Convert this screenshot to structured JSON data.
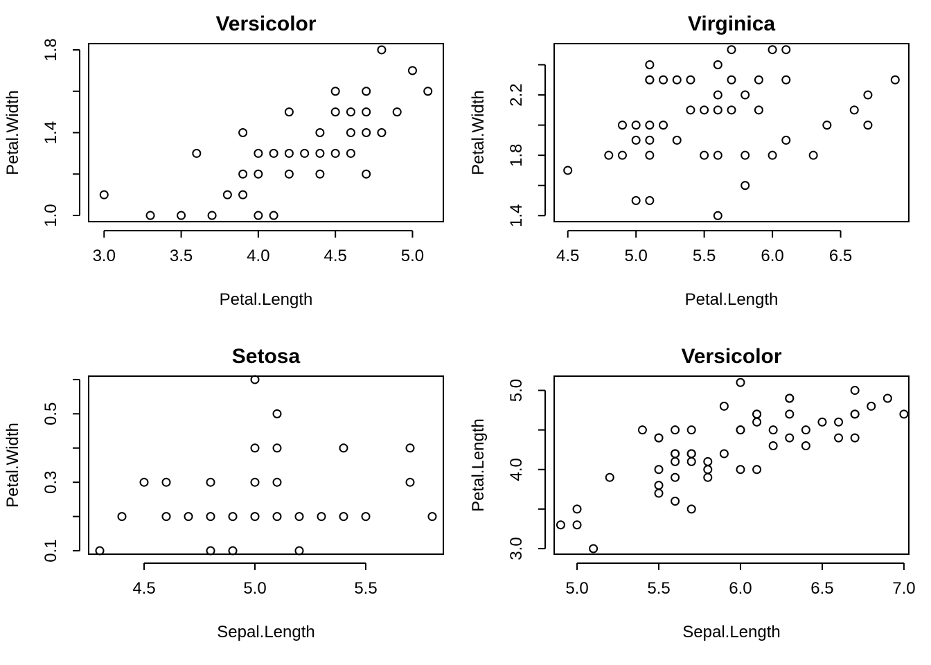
{
  "chart_data": [
    {
      "type": "scatter",
      "title": "Versicolor",
      "xlabel": "Petal.Length",
      "ylabel": "Petal.Width",
      "xlim": [
        2.9,
        5.2
      ],
      "ylim": [
        0.97,
        1.83
      ],
      "xticks": [
        3.0,
        3.5,
        4.0,
        4.5,
        5.0
      ],
      "xtick_labels": [
        "3.0",
        "3.5",
        "4.0",
        "4.5",
        "5.0"
      ],
      "yticks": [
        1.0,
        1.2,
        1.4,
        1.6,
        1.8
      ],
      "ytick_labels": [
        "1.0",
        "",
        "1.4",
        "",
        "1.8"
      ],
      "x": [
        3.0,
        3.3,
        3.5,
        3.6,
        3.7,
        3.8,
        3.9,
        3.9,
        3.9,
        4.0,
        4.0,
        4.0,
        4.1,
        4.1,
        4.2,
        4.2,
        4.2,
        4.3,
        4.4,
        4.4,
        4.4,
        4.5,
        4.5,
        4.5,
        4.6,
        4.6,
        4.6,
        4.7,
        4.7,
        4.7,
        4.7,
        4.8,
        4.8,
        4.9,
        5.0,
        5.1
      ],
      "y": [
        1.1,
        1.0,
        1.0,
        1.3,
        1.0,
        1.1,
        1.1,
        1.2,
        1.4,
        1.0,
        1.2,
        1.3,
        1.0,
        1.3,
        1.2,
        1.3,
        1.5,
        1.3,
        1.2,
        1.3,
        1.4,
        1.3,
        1.5,
        1.6,
        1.3,
        1.4,
        1.5,
        1.2,
        1.4,
        1.5,
        1.6,
        1.4,
        1.8,
        1.5,
        1.7,
        1.6
      ]
    },
    {
      "type": "scatter",
      "title": "Virginica",
      "xlabel": "Petal.Length",
      "ylabel": "Petal.Width",
      "xlim": [
        4.4,
        7.0
      ],
      "ylim": [
        1.36,
        2.54
      ],
      "xticks": [
        4.5,
        5.0,
        5.5,
        6.0,
        6.5
      ],
      "xtick_labels": [
        "4.5",
        "5.0",
        "5.5",
        "6.0",
        "6.5"
      ],
      "yticks": [
        1.4,
        1.6,
        1.8,
        2.0,
        2.2,
        2.4
      ],
      "ytick_labels": [
        "1.4",
        "",
        "1.8",
        "",
        "2.2",
        ""
      ],
      "x": [
        4.5,
        4.8,
        4.9,
        4.9,
        5.0,
        5.0,
        5.0,
        5.1,
        5.1,
        5.1,
        5.1,
        5.1,
        5.1,
        5.1,
        5.2,
        5.2,
        5.3,
        5.3,
        5.4,
        5.4,
        5.5,
        5.5,
        5.6,
        5.6,
        5.6,
        5.6,
        5.6,
        5.7,
        5.7,
        5.7,
        5.8,
        5.8,
        5.8,
        5.9,
        5.9,
        6.0,
        6.0,
        6.1,
        6.1,
        6.1,
        6.3,
        6.4,
        6.6,
        6.7,
        6.7,
        6.9
      ],
      "y": [
        1.7,
        1.8,
        1.8,
        2.0,
        1.5,
        1.9,
        2.0,
        1.5,
        1.8,
        1.9,
        2.0,
        2.3,
        2.3,
        2.4,
        2.0,
        2.3,
        1.9,
        2.3,
        2.1,
        2.3,
        1.8,
        2.1,
        1.4,
        1.8,
        2.1,
        2.2,
        2.4,
        2.1,
        2.3,
        2.5,
        1.6,
        1.8,
        2.2,
        2.1,
        2.3,
        1.8,
        2.5,
        1.9,
        2.3,
        2.5,
        1.8,
        2.0,
        2.1,
        2.0,
        2.2,
        2.3
      ]
    },
    {
      "type": "scatter",
      "title": "Setosa",
      "xlabel": "Sepal.Length",
      "ylabel": "Petal.Width",
      "xlim": [
        4.25,
        5.85
      ],
      "ylim": [
        0.09,
        0.61
      ],
      "xticks": [
        4.5,
        5.0,
        5.5
      ],
      "xtick_labels": [
        "4.5",
        "5.0",
        "5.5"
      ],
      "yticks": [
        0.1,
        0.2,
        0.3,
        0.4,
        0.5,
        0.6
      ],
      "ytick_labels": [
        "0.1",
        "",
        "0.3",
        "",
        "0.5",
        ""
      ],
      "x": [
        4.3,
        4.4,
        4.5,
        4.6,
        4.6,
        4.7,
        4.8,
        4.8,
        4.8,
        4.9,
        4.9,
        5.0,
        5.0,
        5.0,
        5.0,
        5.1,
        5.1,
        5.1,
        5.1,
        5.2,
        5.2,
        5.3,
        5.4,
        5.4,
        5.5,
        5.7,
        5.7,
        5.8
      ],
      "y": [
        0.1,
        0.2,
        0.3,
        0.2,
        0.3,
        0.2,
        0.1,
        0.2,
        0.3,
        0.1,
        0.2,
        0.2,
        0.3,
        0.4,
        0.6,
        0.2,
        0.3,
        0.4,
        0.5,
        0.1,
        0.2,
        0.2,
        0.2,
        0.4,
        0.2,
        0.3,
        0.4,
        0.2
      ]
    },
    {
      "type": "scatter",
      "title": "Versicolor",
      "xlabel": "Sepal.Length",
      "ylabel": "Petal.Length",
      "xlim": [
        4.86,
        7.03
      ],
      "ylim": [
        2.93,
        5.18
      ],
      "xticks": [
        5.0,
        5.5,
        6.0,
        6.5,
        7.0
      ],
      "xtick_labels": [
        "5.0",
        "5.5",
        "6.0",
        "6.5",
        "7.0"
      ],
      "yticks": [
        3.0,
        3.5,
        4.0,
        4.5,
        5.0
      ],
      "ytick_labels": [
        "3.0",
        "",
        "4.0",
        "",
        "5.0"
      ],
      "x": [
        4.9,
        5.0,
        5.0,
        5.1,
        5.2,
        5.4,
        5.5,
        5.5,
        5.5,
        5.5,
        5.5,
        5.6,
        5.6,
        5.6,
        5.6,
        5.6,
        5.6,
        5.7,
        5.7,
        5.7,
        5.7,
        5.7,
        5.8,
        5.8,
        5.8,
        5.9,
        5.9,
        6.0,
        6.0,
        6.0,
        6.0,
        6.1,
        6.1,
        6.1,
        6.1,
        6.2,
        6.2,
        6.3,
        6.3,
        6.3,
        6.3,
        6.4,
        6.4,
        6.5,
        6.6,
        6.6,
        6.7,
        6.7,
        6.7,
        6.7,
        6.8,
        6.9,
        7.0
      ],
      "y": [
        3.3,
        3.3,
        3.5,
        3.0,
        3.9,
        4.5,
        3.7,
        3.8,
        4.0,
        4.4,
        4.4,
        3.6,
        3.9,
        4.1,
        4.2,
        4.2,
        4.5,
        3.5,
        4.1,
        4.2,
        4.2,
        4.5,
        3.9,
        4.0,
        4.1,
        4.2,
        4.8,
        4.0,
        4.5,
        4.5,
        5.1,
        4.0,
        4.6,
        4.7,
        4.7,
        4.3,
        4.5,
        4.4,
        4.7,
        4.9,
        4.9,
        4.3,
        4.5,
        4.6,
        4.4,
        4.6,
        4.4,
        4.7,
        4.7,
        5.0,
        4.8,
        4.9,
        4.7
      ]
    }
  ]
}
